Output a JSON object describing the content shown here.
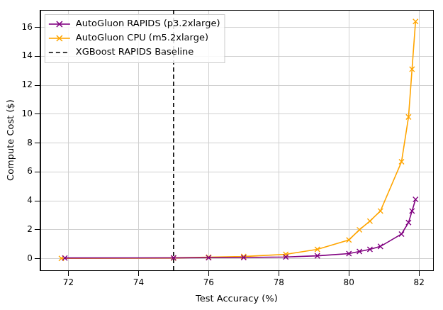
{
  "chart_data": {
    "type": "line",
    "x_label": "Test Accuracy (%)",
    "y_label": "Compute Cost ($)",
    "series": [
      {
        "name": "AutoGluon RAPIDS (p3.2xlarge)",
        "color": "#800080",
        "marker": "x",
        "line_style": "solid",
        "x": [
          71.9,
          75.0,
          76.0,
          77.0,
          78.2,
          79.1,
          80.0,
          80.3,
          80.6,
          80.9,
          81.5,
          81.7,
          81.8,
          81.9
        ],
        "values": [
          0.05,
          0.06,
          0.07,
          0.08,
          0.12,
          0.2,
          0.35,
          0.5,
          0.65,
          0.85,
          1.7,
          2.5,
          3.3,
          4.1
        ]
      },
      {
        "name": "AutoGluon CPU (m5.2xlarge)",
        "color": "#FFA500",
        "marker": "x",
        "line_style": "solid",
        "x": [
          71.8,
          75.0,
          76.0,
          77.0,
          78.2,
          79.1,
          80.0,
          80.3,
          80.6,
          80.9,
          81.5,
          81.7,
          81.8,
          81.9
        ],
        "values": [
          0.02,
          0.05,
          0.1,
          0.15,
          0.3,
          0.65,
          1.3,
          2.0,
          2.6,
          3.3,
          6.7,
          9.8,
          13.1,
          16.4
        ]
      }
    ],
    "baseline": {
      "name": "XGBoost RAPIDS Baseline",
      "value": 75,
      "color": "#000000",
      "line_style": "dashed"
    },
    "xlim": [
      71.2,
      82.4
    ],
    "xticks": [
      72,
      74,
      76,
      78,
      80,
      82
    ],
    "ylim": [
      -0.8,
      17.2
    ],
    "yticks": [
      0,
      2,
      4,
      6,
      8,
      10,
      12,
      14,
      16
    ],
    "grid": true,
    "legend": "upper left"
  }
}
